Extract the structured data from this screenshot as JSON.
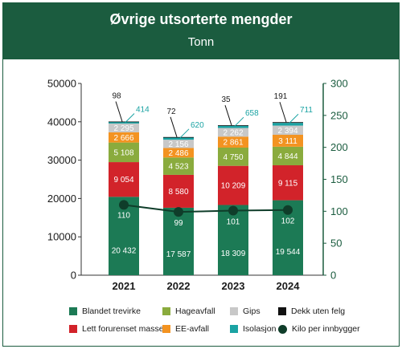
{
  "header": {
    "title": "Øvrige utsorterte mengder",
    "subtitle": "Tonn"
  },
  "chart_data": {
    "type": "bar",
    "stacked": true,
    "categories": [
      "2021",
      "2022",
      "2023",
      "2024"
    ],
    "y_left": {
      "min": 0,
      "max": 50000,
      "ticks": [
        "0",
        "10000",
        "20000",
        "30000",
        "40000",
        "50000"
      ]
    },
    "y_right": {
      "min": 0,
      "max": 300,
      "ticks": [
        "0",
        "50",
        "100",
        "150",
        "200",
        "250",
        "300"
      ]
    },
    "series": [
      {
        "name": "Blandet trevirke",
        "color": "#1c7a55",
        "values": [
          20432,
          17587,
          18309,
          19544
        ],
        "labels": [
          "20 432",
          "17 587",
          "18 309",
          "19 544"
        ],
        "label_style": "white"
      },
      {
        "name": "Lett forurenset masse",
        "color": "#d2232a",
        "values": [
          9054,
          8580,
          10209,
          9115
        ],
        "labels": [
          "9 054",
          "8 580",
          "10 209",
          "9 115"
        ],
        "label_style": "white"
      },
      {
        "name": "Hageavfall",
        "color": "#8aab3d",
        "values": [
          5108,
          4523,
          4750,
          4844
        ],
        "labels": [
          "5 108",
          "4 523",
          "4 750",
          "4 844"
        ],
        "label_style": "white"
      },
      {
        "name": "EE-avfall",
        "color": "#f39321",
        "values": [
          2666,
          2486,
          2861,
          3111
        ],
        "labels": [
          "2 666",
          "2 486",
          "2 861",
          "3 111"
        ],
        "label_style": "white"
      },
      {
        "name": "Gips",
        "color": "#c8c8c8",
        "values": [
          2295,
          2156,
          2262,
          2394
        ],
        "labels": [
          "2 295",
          "2 156",
          "2 262",
          "2 394"
        ],
        "label_style": "white"
      },
      {
        "name": "Isolasjon",
        "color": "#1aa3a3",
        "values": [
          414,
          620,
          658,
          711
        ],
        "labels": [
          "414",
          "620",
          "658",
          "711"
        ],
        "label_style": "callout-teal"
      },
      {
        "name": "Dekk uten felg",
        "color": "#111111",
        "values": [
          98,
          72,
          35,
          191
        ],
        "labels": [
          "98",
          "72",
          "35",
          "191"
        ],
        "label_style": "callout-dark"
      }
    ],
    "line": {
      "name": "Kilo per innbygger",
      "axis": "right",
      "color": "#0f3d2a",
      "values": [
        110,
        99,
        101,
        102
      ],
      "labels": [
        "110",
        "99",
        "101",
        "102"
      ]
    },
    "legend": {
      "position": "bottom",
      "items": [
        {
          "name": "Blandet trevirke",
          "color": "#1c7a55",
          "marker": "square"
        },
        {
          "name": "Lett forurenset masse",
          "color": "#d2232a",
          "marker": "square"
        },
        {
          "name": "Hageavfall",
          "color": "#8aab3d",
          "marker": "square"
        },
        {
          "name": "EE-avfall",
          "color": "#f39321",
          "marker": "square"
        },
        {
          "name": "Gips",
          "color": "#c8c8c8",
          "marker": "square"
        },
        {
          "name": "Isolasjon",
          "color": "#1aa3a3",
          "marker": "square"
        },
        {
          "name": "Dekk uten felg",
          "color": "#111111",
          "marker": "square"
        },
        {
          "name": "Kilo per innbygger",
          "color": "#0f3d2a",
          "marker": "circle"
        }
      ]
    },
    "grid": false
  }
}
